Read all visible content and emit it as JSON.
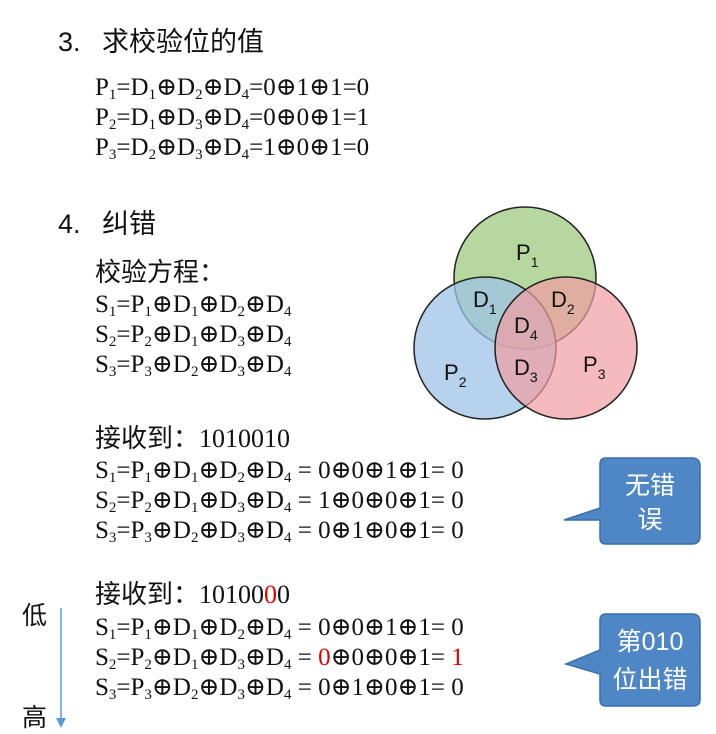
{
  "section3": {
    "number": "3.",
    "title": "求校验位的值",
    "equations": [
      {
        "p": "P",
        "pi": "1",
        "lhs": "=D",
        "a": "1",
        "b": "2",
        "c": "4",
        "rhs": "=0⊕1⊕1=0"
      },
      {
        "p": "P",
        "pi": "2",
        "lhs": "=D",
        "a": "1",
        "b": "3",
        "c": "4",
        "rhs": "=0⊕0⊕1=1"
      },
      {
        "p": "P",
        "pi": "3",
        "lhs": "=D",
        "a": "2",
        "b": "3",
        "c": "4",
        "rhs": "=1⊕0⊕1=0"
      }
    ]
  },
  "section4": {
    "number": "4.",
    "title": "纠错",
    "check_label": "校验方程：",
    "check_equations": [
      {
        "s": "S",
        "si": "1",
        "pi": "1",
        "a": "1",
        "b": "2",
        "c": "4"
      },
      {
        "s": "S",
        "si": "2",
        "pi": "2",
        "a": "1",
        "b": "3",
        "c": "4"
      },
      {
        "s": "S",
        "si": "3",
        "pi": "3",
        "a": "2",
        "b": "3",
        "c": "4"
      }
    ]
  },
  "venn": {
    "labels": {
      "p1": "P",
      "p1_sub": "1",
      "p2": "P",
      "p2_sub": "2",
      "p3": "P",
      "p3_sub": "3",
      "d1": "D",
      "d1_sub": "1",
      "d2": "D",
      "d2_sub": "2",
      "d3": "D",
      "d3_sub": "3",
      "d4": "D",
      "d4_sub": "4"
    },
    "colors": {
      "p1": "#a9d18e",
      "p2": "#9dc3e6",
      "p3": "#f19ca1"
    }
  },
  "case1": {
    "received_label": "接收到：",
    "received_value": "1010010",
    "results": [
      {
        "si": "1",
        "pi": "1",
        "a": "1",
        "b": "2",
        "c": "4",
        "calc": " = 0⊕0⊕1⊕1= 0"
      },
      {
        "si": "2",
        "pi": "2",
        "a": "1",
        "b": "3",
        "c": "4",
        "calc": " = 1⊕0⊕0⊕1= 0"
      },
      {
        "si": "3",
        "pi": "3",
        "a": "2",
        "b": "3",
        "c": "4",
        "calc": " = 0⊕1⊕0⊕1= 0"
      }
    ],
    "callout": {
      "line1": "无错",
      "line2": "误",
      "color": "#4f86c6"
    }
  },
  "case2": {
    "received_label": "接收到：",
    "received_prefix": "10100",
    "received_error": "0",
    "received_suffix": "0",
    "results": [
      {
        "si": "1",
        "pi": "1",
        "a": "1",
        "b": "2",
        "c": "4",
        "calc": " = 0⊕0⊕1⊕1= 0"
      },
      {
        "si": "2",
        "pi": "2",
        "a": "1",
        "b": "3",
        "c": "4",
        "pre": " = ",
        "err": "0",
        "mid": "⊕0⊕0⊕1= ",
        "res": "1"
      },
      {
        "si": "3",
        "pi": "3",
        "a": "2",
        "b": "3",
        "c": "4",
        "calc": " = 0⊕1⊕0⊕1= 0"
      }
    ],
    "callout": {
      "line1": "第010",
      "line2": "位出错",
      "color": "#4f86c6"
    },
    "order_low": "低",
    "order_high": "高"
  }
}
